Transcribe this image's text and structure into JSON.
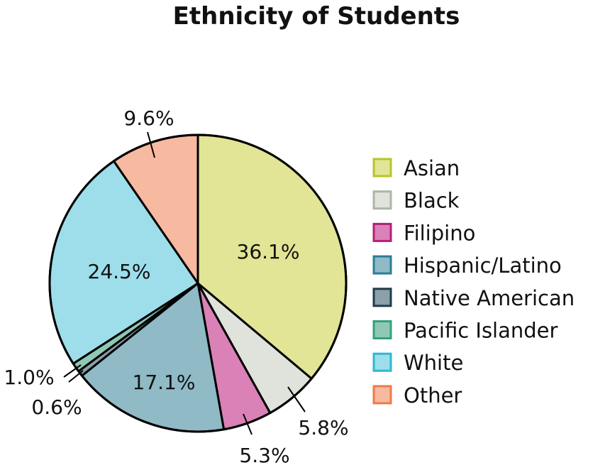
{
  "chart_data": {
    "type": "pie",
    "title": "Ethnicity of Students",
    "categories": [
      "Asian",
      "Black",
      "Filipino",
      "Hispanic/Latino",
      "Native American",
      "Pacific Islander",
      "White",
      "Other"
    ],
    "values": [
      36.1,
      5.8,
      5.3,
      17.1,
      0.6,
      1.0,
      24.5,
      9.6
    ],
    "value_labels": [
      "36.1%",
      "5.8%",
      "5.3%",
      "17.1%",
      "0.6%",
      "1.0%",
      "24.5%",
      "9.6%"
    ],
    "label_position": [
      "inside",
      "outside",
      "outside",
      "inside",
      "outside",
      "outside",
      "inside",
      "outside"
    ],
    "colors": {
      "fill": [
        "#e1e595",
        "#dfe3db",
        "#da82b7",
        "#8fbac6",
        "#8ca0a9",
        "#8fc9b6",
        "#9ddeea",
        "#f7b9a0"
      ],
      "swatch_border": [
        "#b9c32c",
        "#aeb5a6",
        "#b51f78",
        "#2a7f95",
        "#1f3c4c",
        "#33a27a",
        "#2fb7d4",
        "#ef7a48"
      ]
    },
    "start_angle": "12 o'clock",
    "direction": "clockwise",
    "legend": "right"
  }
}
